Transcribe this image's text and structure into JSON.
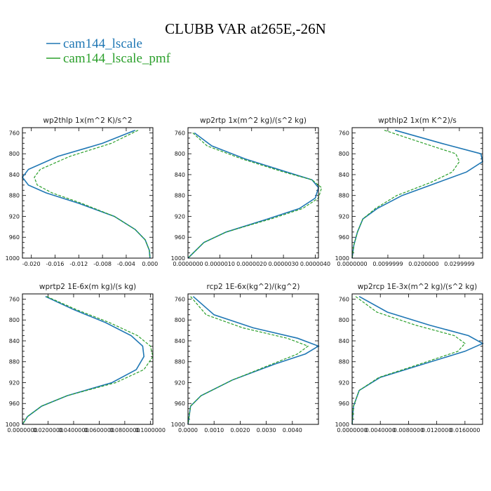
{
  "chart_data": {
    "title": "CLUBB VAR at265E,-26N",
    "legend": {
      "placement": "top-left"
    },
    "series_styles": [
      {
        "name": "cam144_lscale",
        "color": "#1f77b4",
        "dash": "solid"
      },
      {
        "name": "cam144_lscale_pmf",
        "color": "#2ca02c",
        "dash": "dashed"
      }
    ],
    "panels": [
      {
        "type": "line",
        "title": "wp2thlp   1x(m^2 K)/s^2",
        "ylim": [
          1000,
          750
        ],
        "yticks": [
          "760",
          "800",
          "840",
          "880",
          "920",
          "960",
          "1000"
        ],
        "xlim": [
          -0.0215,
          0.0005
        ],
        "xticks": [
          {
            "v": -0.02,
            "label": "-0.020"
          },
          {
            "v": -0.016,
            "label": "-0.016"
          },
          {
            "v": -0.012,
            "label": "-0.012"
          },
          {
            "v": -0.008,
            "label": "-0.008"
          },
          {
            "v": -0.004,
            "label": "-0.004"
          },
          {
            "v": 0.0,
            "label": "0.000"
          }
        ],
        "series": [
          {
            "name": "cam144_lscale",
            "x": [
              -0.0025,
              -0.008,
              -0.0155,
              -0.0205,
              -0.0215,
              -0.0205,
              -0.0175,
              -0.012,
              -0.006,
              -0.0025,
              -0.0008,
              -0.0001,
              0.0
            ],
            "y": [
              755,
              780,
              805,
              830,
              845,
              860,
              875,
              895,
              920,
              945,
              965,
              985,
              1000
            ]
          },
          {
            "name": "cam144_lscale_pmf",
            "x": [
              -0.002,
              -0.0065,
              -0.0135,
              -0.0185,
              -0.0195,
              -0.019,
              -0.0165,
              -0.0115,
              -0.006,
              -0.0025,
              -0.0008,
              -0.0001,
              0.0
            ],
            "y": [
              755,
              780,
              805,
              830,
              845,
              860,
              875,
              895,
              920,
              945,
              965,
              985,
              1000
            ]
          }
        ]
      },
      {
        "type": "line",
        "title": "wp2rtp   1x(m^2 kg)/(s^2 kg)",
        "ylim": [
          1000,
          750
        ],
        "yticks": [
          "760",
          "800",
          "840",
          "880",
          "920",
          "960",
          "1000"
        ],
        "xlim": [
          0.0,
          4.1e-06
        ],
        "xticks": [
          {
            "v": 0.0,
            "label": "0.0000000"
          },
          {
            "v": 1e-06,
            "label": "0.0000010"
          },
          {
            "v": 2e-06,
            "label": "0.0000020"
          },
          {
            "v": 3e-06,
            "label": "0.0000030"
          },
          {
            "v": 4e-06,
            "label": "0.0000040"
          }
        ],
        "series": [
          {
            "name": "cam144_lscale",
            "x": [
              2e-07,
              7.5e-07,
              1.8e-06,
              3.1e-06,
              3.9e-06,
              4.1e-06,
              4e-06,
              3.5e-06,
              2.5e-06,
              1.2e-06,
              5e-07,
              0.0
            ],
            "y": [
              760,
              785,
              810,
              835,
              850,
              865,
              885,
              905,
              925,
              950,
              970,
              1000
            ]
          },
          {
            "name": "cam144_lscale_pmf",
            "x": [
              1.5e-07,
              6e-07,
              1.7e-06,
              3e-06,
              3.9e-06,
              4.2e-06,
              4.1e-06,
              3.6e-06,
              2.6e-06,
              1.2e-06,
              5e-07,
              0.0
            ],
            "y": [
              760,
              785,
              810,
              835,
              850,
              865,
              885,
              905,
              925,
              950,
              970,
              1000
            ]
          }
        ]
      },
      {
        "type": "line",
        "title": "wpthlp2   1x(m K^2)/s",
        "ylim": [
          1000,
          750
        ],
        "yticks": [
          "760",
          "800",
          "840",
          "880",
          "920",
          "960",
          "1000"
        ],
        "xlim": [
          0.0,
          0.0365
        ],
        "xticks": [
          {
            "v": 0.0,
            "label": "0.0000000"
          },
          {
            "v": 0.01,
            "label": "0.0099999"
          },
          {
            "v": 0.02,
            "label": "0.0200000"
          },
          {
            "v": 0.03,
            "label": "0.0299999"
          }
        ],
        "series": [
          {
            "name": "cam144_lscale",
            "x": [
              0.012,
              0.025,
              0.036,
              0.0365,
              0.032,
              0.024,
              0.014,
              0.007,
              0.003,
              0.0015,
              0.0005,
              0.0
            ],
            "y": [
              755,
              780,
              800,
              815,
              835,
              855,
              880,
              905,
              925,
              950,
              975,
              1000
            ]
          },
          {
            "name": "cam144_lscale_pmf",
            "x": [
              0.009,
              0.02,
              0.029,
              0.03,
              0.028,
              0.022,
              0.0125,
              0.0065,
              0.003,
              0.0015,
              0.0005,
              0.0
            ],
            "y": [
              755,
              780,
              800,
              815,
              835,
              855,
              880,
              905,
              925,
              950,
              975,
              1000
            ]
          }
        ]
      },
      {
        "type": "line",
        "title": "wprtp2   1E-6x(m kg)/(s kg)",
        "ylim": [
          1000,
          750
        ],
        "yticks": [
          "760",
          "800",
          "840",
          "880",
          "920",
          "960",
          "1000"
        ],
        "xlim": [
          0.0,
          0.102
        ],
        "xticks": [
          {
            "v": 0.0,
            "label": "0.0000000"
          },
          {
            "v": 0.02,
            "label": "0.0200000"
          },
          {
            "v": 0.04,
            "label": "0.0400000"
          },
          {
            "v": 0.06,
            "label": "0.0600000"
          },
          {
            "v": 0.08,
            "label": "0.0800000"
          },
          {
            "v": 0.1,
            "label": "0.1000000"
          }
        ],
        "series": [
          {
            "name": "cam144_lscale",
            "x": [
              0.018,
              0.04,
              0.065,
              0.085,
              0.094,
              0.095,
              0.089,
              0.07,
              0.035,
              0.015,
              0.004,
              0.0
            ],
            "y": [
              755,
              780,
              805,
              830,
              850,
              870,
              895,
              920,
              945,
              965,
              985,
              1000
            ]
          },
          {
            "name": "cam144_lscale_pmf",
            "x": [
              0.019,
              0.042,
              0.068,
              0.09,
              0.1,
              0.102,
              0.095,
              0.073,
              0.035,
              0.015,
              0.004,
              0.0
            ],
            "y": [
              755,
              780,
              805,
              830,
              850,
              870,
              895,
              920,
              945,
              965,
              985,
              1000
            ]
          }
        ]
      },
      {
        "type": "line",
        "title": "rcp2   1E-6x(kg^2)/(kg^2)",
        "ylim": [
          1000,
          750
        ],
        "yticks": [
          "760",
          "800",
          "840",
          "880",
          "920",
          "960",
          "1000"
        ],
        "xlim": [
          0.0,
          0.005
        ],
        "xticks": [
          {
            "v": 0.0,
            "label": "0.0000"
          },
          {
            "v": 0.001,
            "label": "0.0010"
          },
          {
            "v": 0.002,
            "label": "0.0020"
          },
          {
            "v": 0.003,
            "label": "0.0030"
          },
          {
            "v": 0.004,
            "label": "0.0040"
          }
        ],
        "series": [
          {
            "name": "cam144_lscale",
            "x": [
              0.0002,
              0.001,
              0.0025,
              0.0042,
              0.005,
              0.0045,
              0.0033,
              0.0017,
              0.0005,
              0.0001,
              0.0
            ],
            "y": [
              755,
              790,
              815,
              835,
              850,
              865,
              885,
              915,
              945,
              965,
              1000
            ]
          },
          {
            "name": "cam144_lscale_pmf",
            "x": [
              0.0001,
              0.0007,
              0.0021,
              0.0038,
              0.0046,
              0.0042,
              0.0032,
              0.0017,
              0.0005,
              0.0001,
              0.0
            ],
            "y": [
              755,
              790,
              815,
              835,
              850,
              865,
              885,
              915,
              945,
              965,
              1000
            ]
          }
        ]
      },
      {
        "type": "line",
        "title": "wp2rcp   1E-3x(m^2 kg)/(s^2 kg)",
        "ylim": [
          1000,
          750
        ],
        "yticks": [
          "760",
          "800",
          "840",
          "880",
          "920",
          "960",
          "1000"
        ],
        "xlim": [
          0.0,
          0.0185
        ],
        "xticks": [
          {
            "v": 0.0,
            "label": "0.0000000"
          },
          {
            "v": 0.004,
            "label": "0.0040000"
          },
          {
            "v": 0.008,
            "label": "0.0080000"
          },
          {
            "v": 0.012,
            "label": "0.0120000"
          },
          {
            "v": 0.016,
            "label": "0.0160000"
          }
        ],
        "series": [
          {
            "name": "cam144_lscale",
            "x": [
              0.001,
              0.005,
              0.011,
              0.0165,
              0.0185,
              0.016,
              0.01,
              0.004,
              0.001,
              0.0002,
              0.0
            ],
            "y": [
              755,
              785,
              810,
              830,
              845,
              860,
              885,
              910,
              935,
              965,
              1000
            ]
          },
          {
            "name": "cam144_lscale_pmf",
            "x": [
              0.0005,
              0.0035,
              0.009,
              0.0145,
              0.016,
              0.015,
              0.0095,
              0.0038,
              0.001,
              0.0002,
              0.0
            ],
            "y": [
              755,
              785,
              810,
              830,
              845,
              860,
              885,
              910,
              935,
              965,
              1000
            ]
          }
        ]
      }
    ]
  }
}
